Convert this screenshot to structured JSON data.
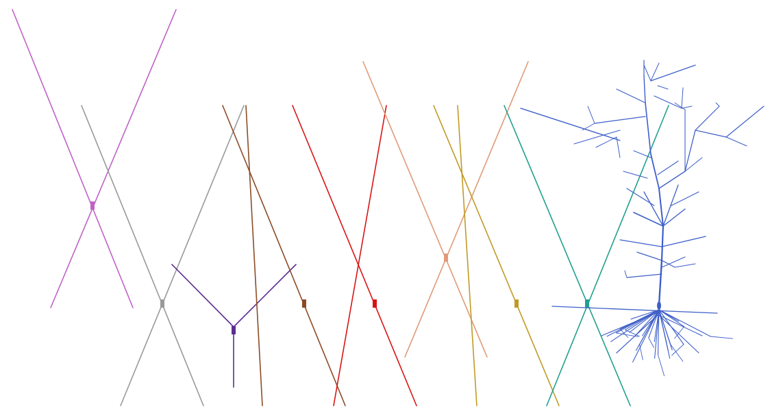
{
  "figure": {
    "background": "#ffffff",
    "morphologies": [
      {
        "id": "neuron-1",
        "kind": "cross",
        "color": "#c062c6"
      },
      {
        "id": "neuron-2",
        "kind": "cross",
        "color": "#999999"
      },
      {
        "id": "neuron-3",
        "kind": "y-shape",
        "color": "#5b2e91"
      },
      {
        "id": "neuron-4",
        "kind": "cross",
        "color": "#8b4b27"
      },
      {
        "id": "neuron-5",
        "kind": "cross",
        "color": "#d81414"
      },
      {
        "id": "neuron-6",
        "kind": "cross",
        "color": "#e09a78"
      },
      {
        "id": "neuron-7",
        "kind": "cross",
        "color": "#c09a26"
      },
      {
        "id": "neuron-8",
        "kind": "cross",
        "color": "#21a08e"
      },
      {
        "id": "neuron-9",
        "kind": "branching-tree",
        "color": "#3e5fc8"
      }
    ]
  }
}
